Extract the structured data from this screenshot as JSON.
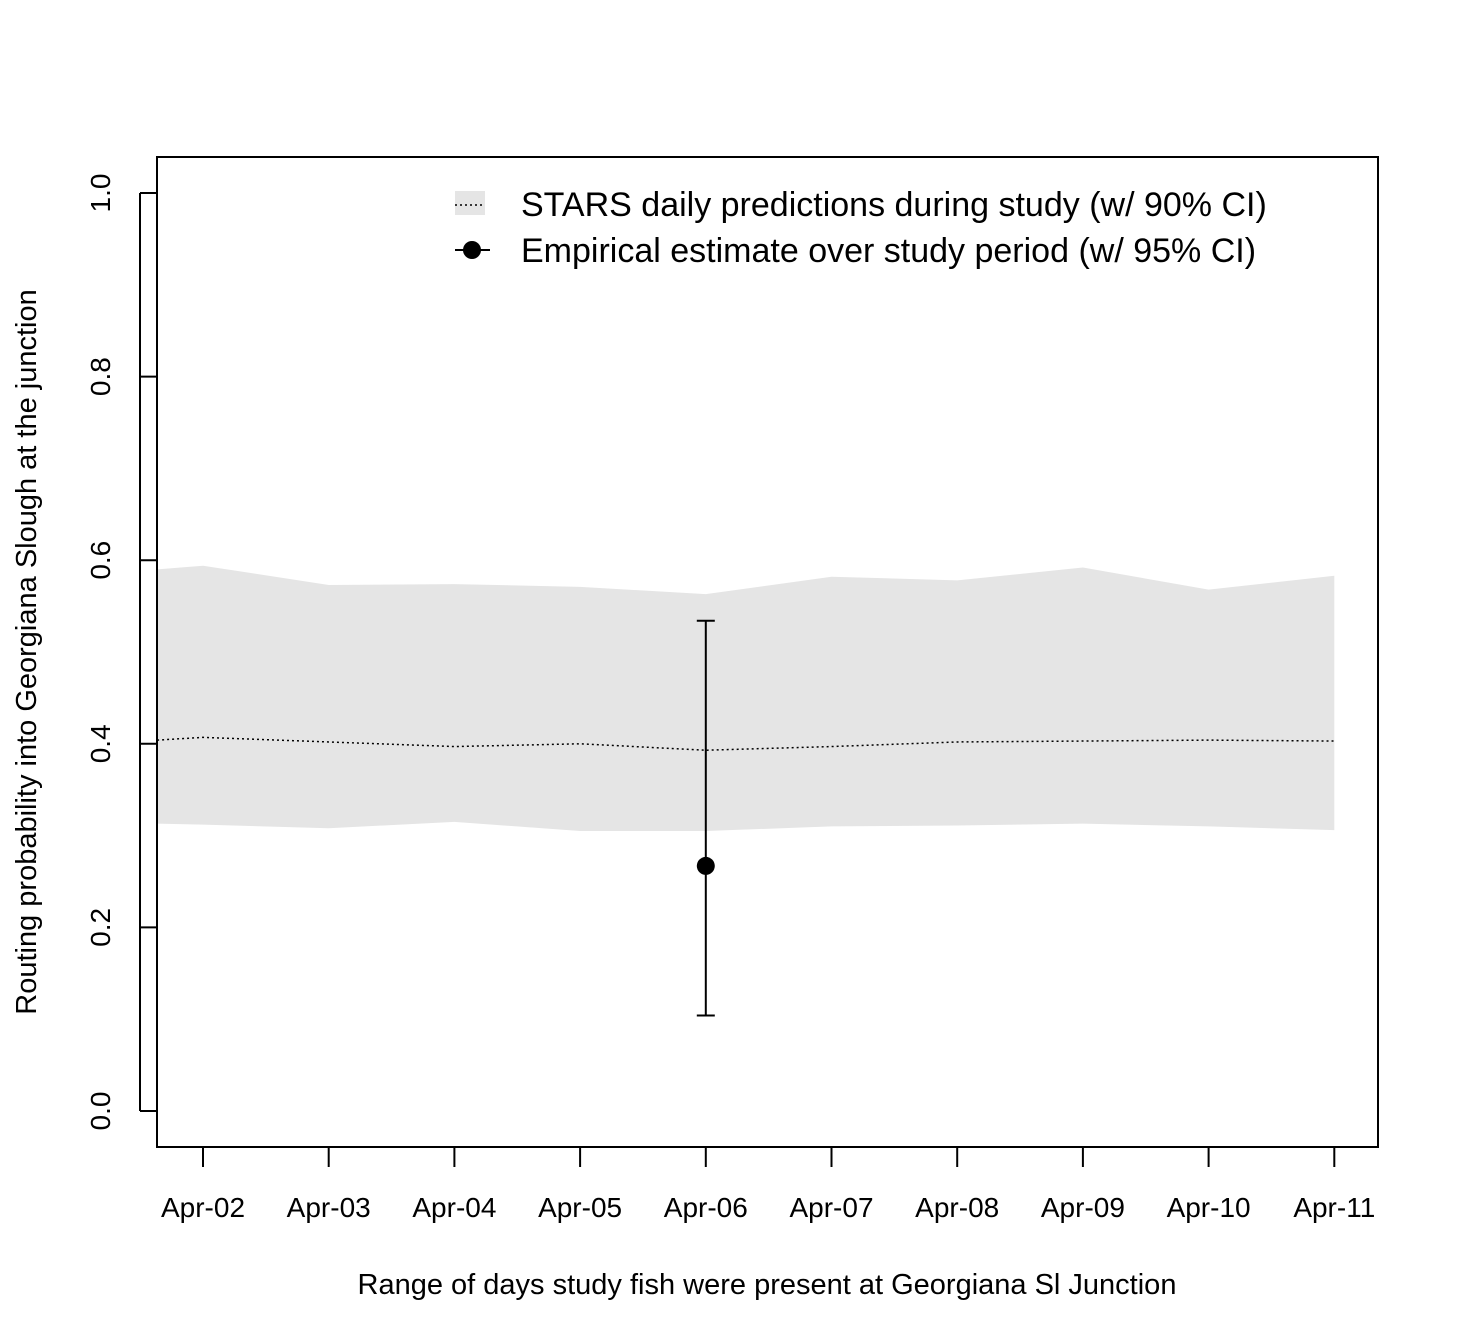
{
  "chart_data": {
    "type": "line",
    "title": "",
    "xlabel": "Range of days study fish were present at Georgiana Sl Junction",
    "ylabel": "Routing probability into Georgiana Slough at the junction",
    "ylim": [
      0.0,
      1.0
    ],
    "yticks": [
      "0.0",
      "0.2",
      "0.4",
      "0.6",
      "0.8",
      "1.0"
    ],
    "grid": false,
    "legend_position": "top-right",
    "categories": [
      "Apr-02",
      "Apr-03",
      "Apr-04",
      "Apr-05",
      "Apr-06",
      "Apr-07",
      "Apr-08",
      "Apr-09",
      "Apr-10",
      "Apr-11"
    ],
    "series": [
      {
        "name": "STARS daily predictions during study (w/ 90% CI)",
        "style": "dotted-line-with-band",
        "band_color": "#e5e5e5",
        "x": [
          "Apr-01.6",
          "Apr-02",
          "Apr-03",
          "Apr-04",
          "Apr-05",
          "Apr-06",
          "Apr-07",
          "Apr-08",
          "Apr-09",
          "Apr-10",
          "Apr-11"
        ],
        "values": [
          0.404,
          0.407,
          0.402,
          0.397,
          0.4,
          0.393,
          0.397,
          0.402,
          0.403,
          0.404,
          0.403
        ],
        "lower": [
          0.313,
          0.312,
          0.308,
          0.315,
          0.305,
          0.305,
          0.31,
          0.311,
          0.313,
          0.31,
          0.306
        ],
        "upper": [
          0.59,
          0.594,
          0.573,
          0.574,
          0.571,
          0.563,
          0.582,
          0.578,
          0.592,
          0.568,
          0.583
        ]
      },
      {
        "name": "Empirical estimate over study period (w/ 95% CI)",
        "style": "point-with-errorbar",
        "x": "Apr-06",
        "value": 0.267,
        "lower": 0.104,
        "upper": 0.534
      }
    ]
  }
}
